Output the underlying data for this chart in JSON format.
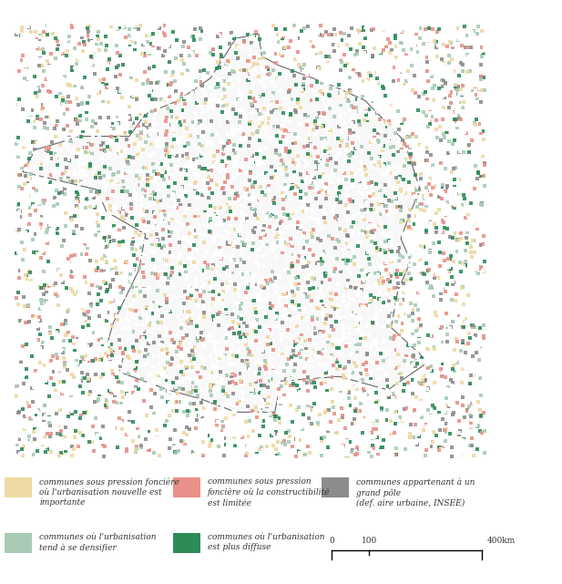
{
  "legend_items": [
    {
      "color": "#EDD9A3",
      "label_line1": "communes sous pression foncière",
      "label_line2": "où l'urbanisation nouvelle est",
      "label_line3": "importante"
    },
    {
      "color": "#E8918A",
      "label_line1": "communes sous pression",
      "label_line2": "foncière où la constructibilité",
      "label_line3": "est limitée"
    },
    {
      "color": "#8C8C8C",
      "label_line1": "communes appartenant à un",
      "label_line2": "grand pôle",
      "label_line3": "(def. aire urbaine, INSEE)"
    },
    {
      "color": "#A8CBB5",
      "label_line1": "communes où l'urbanisation",
      "label_line2": "tend à se densifier",
      "label_line3": ""
    },
    {
      "color": "#2D8B57",
      "label_line1": "communes où l'urbanisation",
      "label_line2": "est plus diffuse",
      "label_line3": ""
    }
  ],
  "background_color": "#ffffff",
  "figure_width": 6.17,
  "figure_height": 6.41,
  "dpi": 100,
  "legend_font_size": 6.5,
  "scale_label_small": "(def. aire urbaine, INSEE)"
}
